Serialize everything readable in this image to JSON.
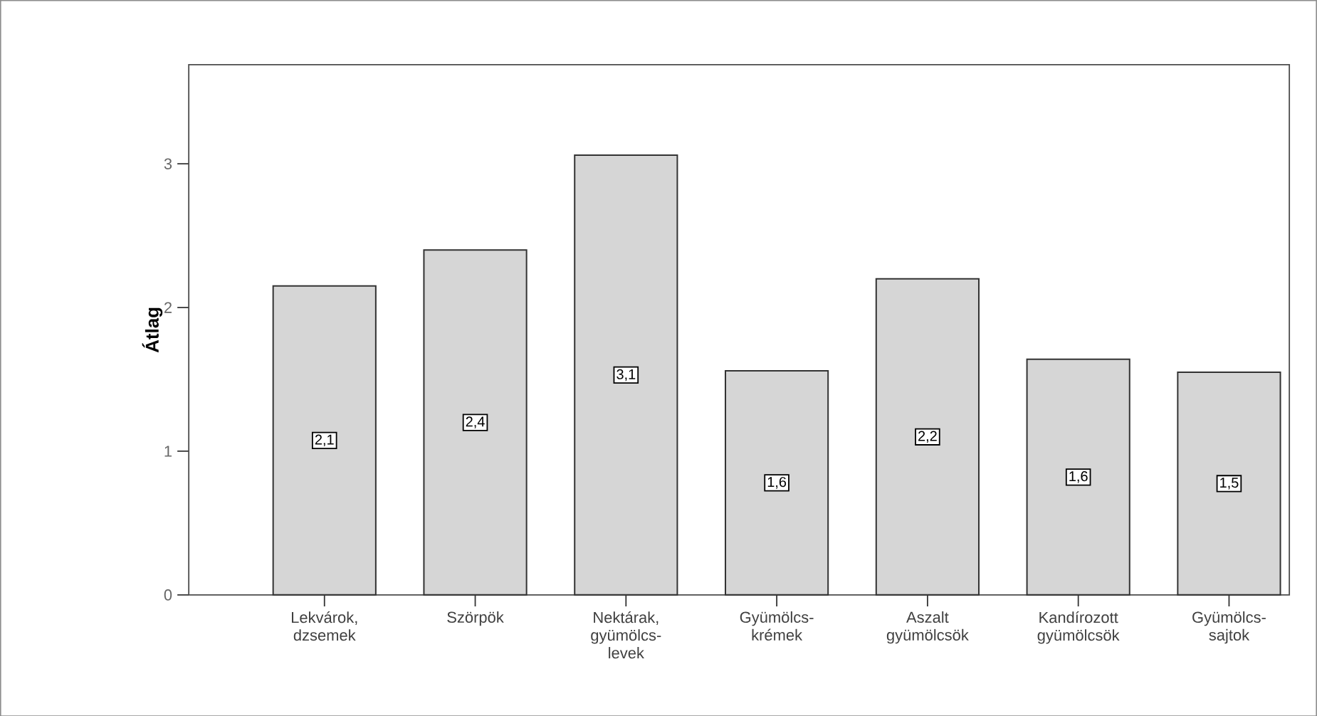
{
  "chart_data": {
    "type": "bar",
    "ylabel": "Átlag",
    "categories": [
      "Lekvárok, dzsemek",
      "Szörpök",
      "Nektárak, gyümölcs-levek",
      "Gyümölcs-krémek",
      "Aszalt gyümölcsök",
      "Kandírozott gyümölcsök",
      "Gyümölcs-sajtok"
    ],
    "values": [
      2.15,
      2.4,
      3.06,
      1.56,
      2.2,
      1.64,
      1.55
    ],
    "value_labels": [
      "2,1",
      "2,4",
      "3,1",
      "1,6",
      "2,2",
      "1,6",
      "1,5"
    ],
    "color": "#d6d6d6",
    "ylim": [
      0,
      3.69
    ],
    "yticks": [
      0,
      1,
      2,
      3
    ],
    "grid": false
  }
}
